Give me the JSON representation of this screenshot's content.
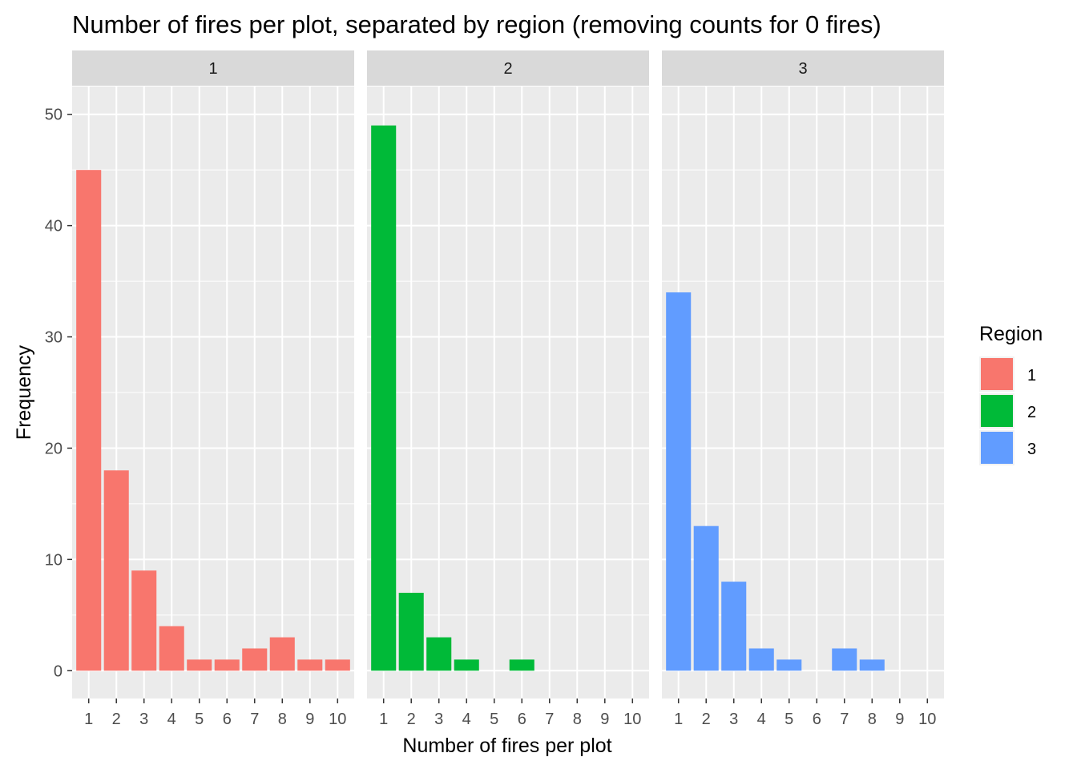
{
  "chart_data": {
    "type": "bar",
    "title": "Number of fires per plot, separated by region (removing counts for 0 fires)",
    "xlabel": "Number of fires per plot",
    "ylabel": "Frequency",
    "categories": [
      "1",
      "2",
      "3",
      "4",
      "5",
      "6",
      "7",
      "8",
      "9",
      "10"
    ],
    "y_ticks": [
      "0",
      "10",
      "20",
      "30",
      "40",
      "50"
    ],
    "ylim": [
      -2.5,
      52.5
    ],
    "grid": true,
    "facets": [
      {
        "label": "1",
        "series": "1",
        "values": [
          45,
          18,
          9,
          4,
          1,
          1,
          2,
          3,
          1,
          1
        ]
      },
      {
        "label": "2",
        "series": "2",
        "values": [
          49,
          7,
          3,
          1,
          0,
          1,
          0,
          0,
          0,
          0
        ]
      },
      {
        "label": "3",
        "series": "3",
        "values": [
          34,
          13,
          8,
          2,
          1,
          0,
          2,
          1,
          0,
          0
        ]
      }
    ],
    "legend": {
      "title": "Region",
      "position": "right",
      "entries": [
        {
          "label": "1",
          "color": "#F8766D"
        },
        {
          "label": "2",
          "color": "#00BA38"
        },
        {
          "label": "3",
          "color": "#619CFF"
        }
      ]
    },
    "colors": {
      "panel_background": "#EBEBEB",
      "strip_background": "#D9D9D9",
      "grid": "#FFFFFF"
    }
  }
}
